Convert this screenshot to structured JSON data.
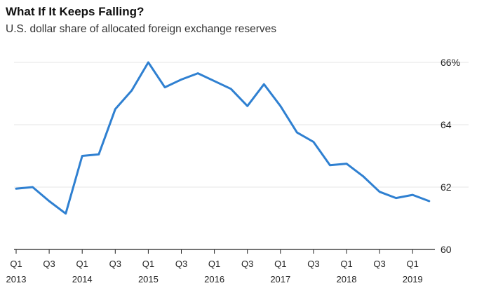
{
  "chart_data": {
    "type": "line",
    "title": "What If It Keeps Falling?",
    "subtitle": "U.S. dollar share of allocated foreign exchange reserves",
    "xlabel": "",
    "ylabel": "",
    "ylim": [
      60,
      66
    ],
    "yticks": [
      60,
      62,
      64,
      66
    ],
    "ytick_labels": [
      "60",
      "62",
      "64",
      "66%"
    ],
    "grid": "horizontal",
    "color": "#2f80d1",
    "x": [
      "2013 Q1",
      "2013 Q2",
      "2013 Q3",
      "2013 Q4",
      "2014 Q1",
      "2014 Q2",
      "2014 Q3",
      "2014 Q4",
      "2015 Q1",
      "2015 Q2",
      "2015 Q3",
      "2015 Q4",
      "2016 Q1",
      "2016 Q2",
      "2016 Q3",
      "2016 Q4",
      "2017 Q1",
      "2017 Q2",
      "2017 Q3",
      "2017 Q4",
      "2018 Q1",
      "2018 Q2",
      "2018 Q3",
      "2018 Q4",
      "2019 Q1",
      "2019 Q2"
    ],
    "values": [
      61.95,
      62.0,
      61.55,
      61.15,
      63.0,
      63.05,
      64.5,
      65.1,
      66.0,
      65.2,
      65.45,
      65.65,
      65.4,
      65.15,
      64.6,
      65.3,
      64.6,
      63.75,
      63.45,
      62.7,
      62.75,
      62.35,
      61.85,
      61.65,
      61.75,
      61.55
    ],
    "xtick_quarters": [
      "Q1",
      "Q3",
      "Q1",
      "Q3",
      "Q1",
      "Q3",
      "Q1",
      "Q3",
      "Q1",
      "Q3",
      "Q1",
      "Q3",
      "Q1"
    ],
    "xtick_years": [
      "2013",
      "",
      "2014",
      "",
      "2015",
      "",
      "2016",
      "",
      "2017",
      "",
      "2018",
      "",
      "2019"
    ]
  }
}
